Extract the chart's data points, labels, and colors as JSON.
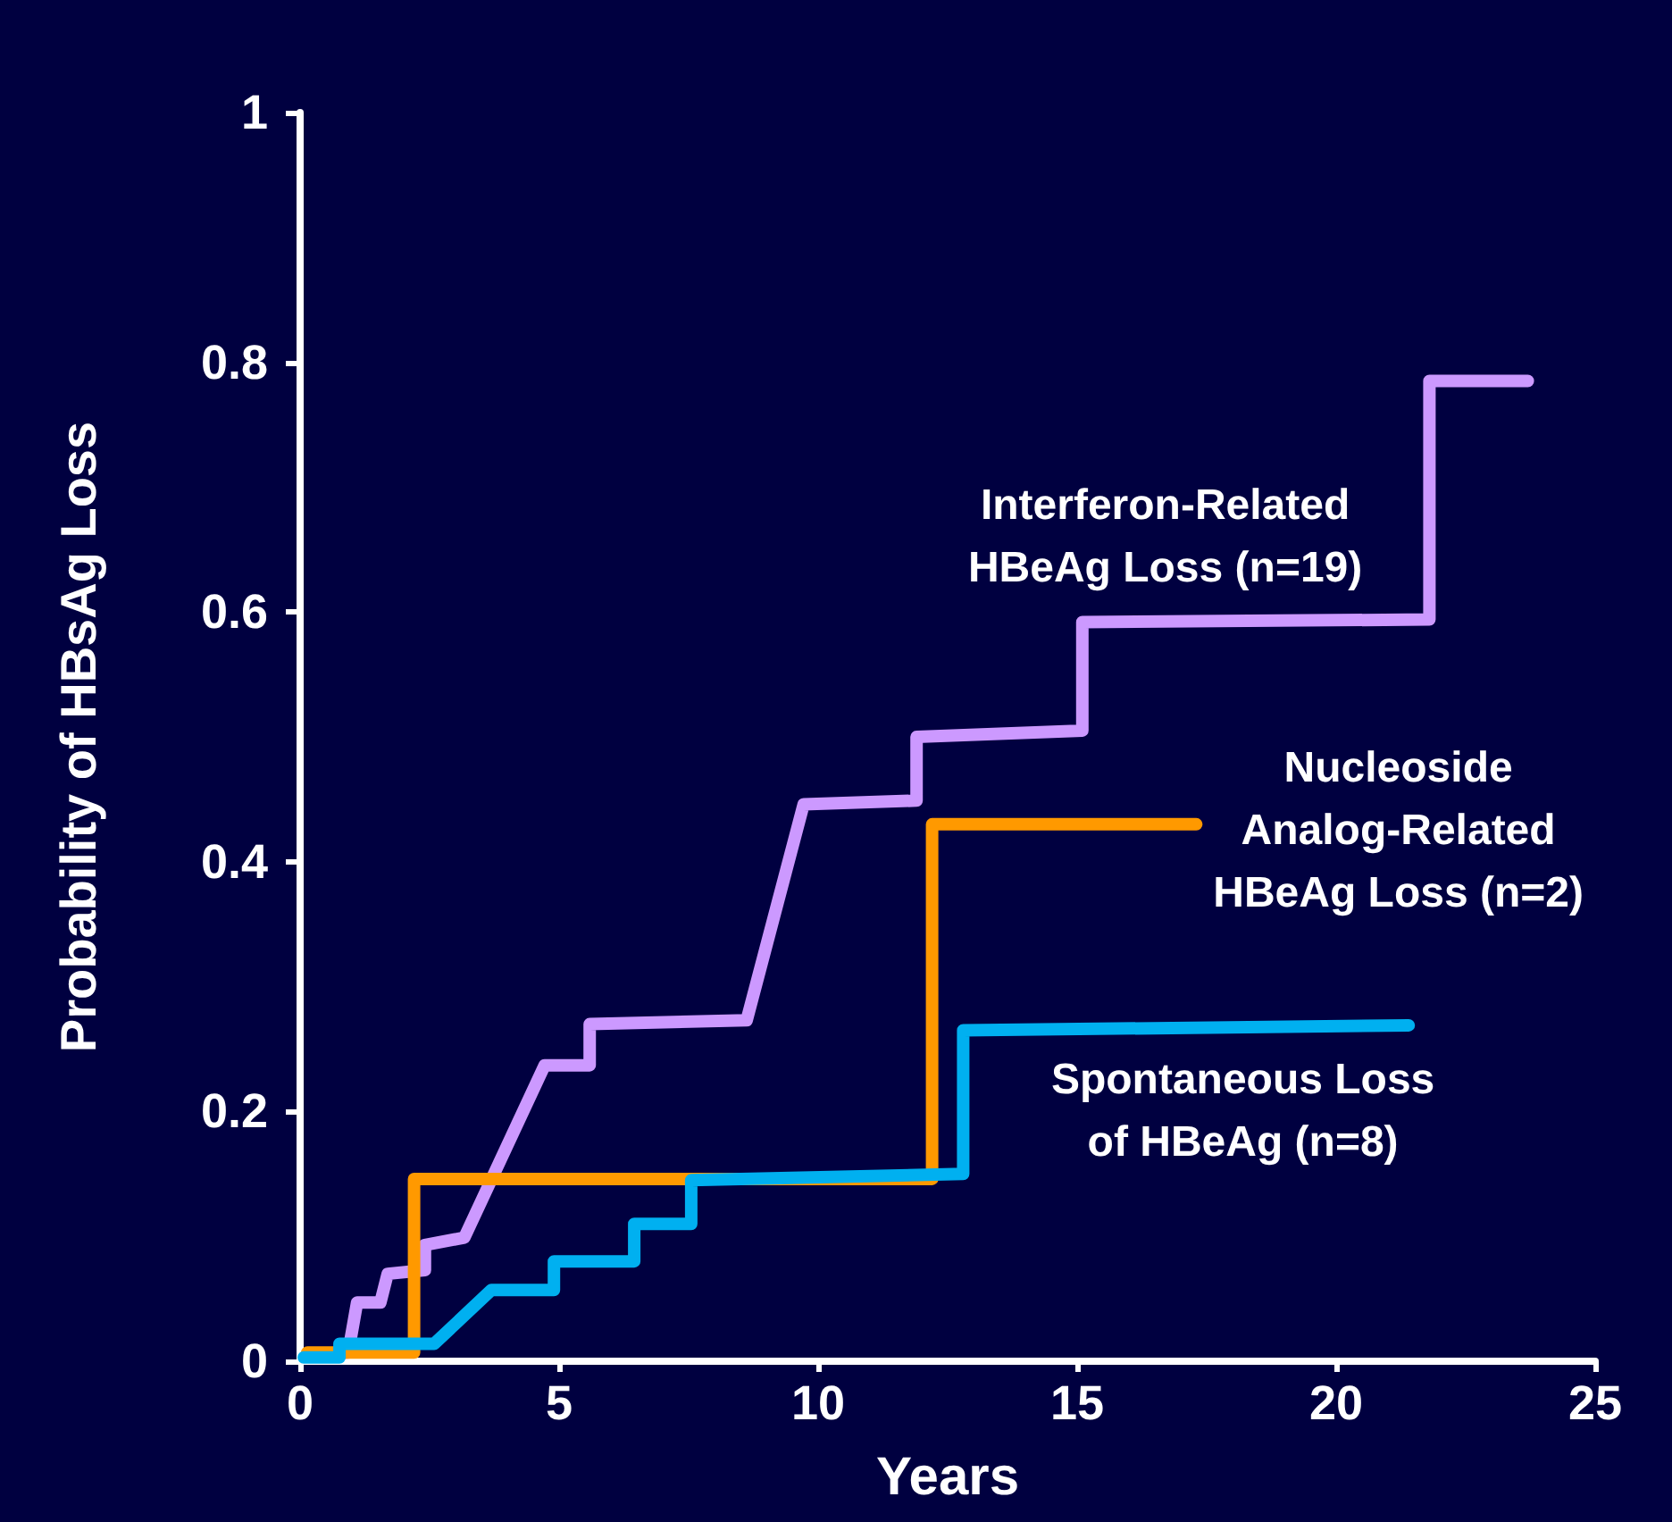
{
  "chart_data": {
    "type": "line",
    "xlabel": "Years",
    "ylabel": "Probability of HBsAg Loss",
    "xlim": [
      0,
      25
    ],
    "xticks": [
      0,
      5,
      10,
      15,
      20,
      25
    ],
    "ylim": [
      0,
      1
    ],
    "yticks": [
      0,
      0.2,
      0.4,
      0.6,
      0.8,
      1
    ],
    "grid": false,
    "legend": false,
    "marker": "none",
    "line_style": "solid",
    "series": [
      {
        "name": "Interferon-Related\nHBeAg Loss (n=19)",
        "color": "#cc99ff",
        "x": [
          0.3,
          0.93,
          1.1,
          1.55,
          1.69,
          2.41,
          2.41,
          3.17,
          4.72,
          5.59,
          5.59,
          8.62,
          9.72,
          11.9,
          11.9,
          15.1,
          15.1,
          21.8,
          21.8,
          23.7
        ],
        "values": [
          0.005,
          0.007,
          0.047,
          0.047,
          0.07,
          0.073,
          0.093,
          0.099,
          0.237,
          0.237,
          0.27,
          0.273,
          0.446,
          0.449,
          0.5,
          0.505,
          0.592,
          0.594,
          0.785,
          0.785
        ]
      },
      {
        "name": "Nucleoside\nAnalog-Related\nHBeAg Loss (n=2)",
        "color": "#ff9900",
        "x": [
          0.14,
          2.2,
          2.2,
          12.2,
          12.2,
          17.3
        ],
        "values": [
          0.007,
          0.007,
          0.146,
          0.146,
          0.43,
          0.43
        ]
      },
      {
        "name": "Spontaneous Loss\nof HBeAg (n=8)",
        "color": "#00b0f0",
        "x": [
          0.07,
          0.76,
          0.76,
          2.59,
          3.69,
          4.9,
          4.9,
          6.45,
          6.45,
          7.55,
          7.55,
          12.8,
          12.8,
          21.4
        ],
        "values": [
          0.003,
          0.003,
          0.014,
          0.014,
          0.057,
          0.057,
          0.08,
          0.08,
          0.11,
          0.11,
          0.145,
          0.15,
          0.265,
          0.269
        ]
      }
    ]
  }
}
